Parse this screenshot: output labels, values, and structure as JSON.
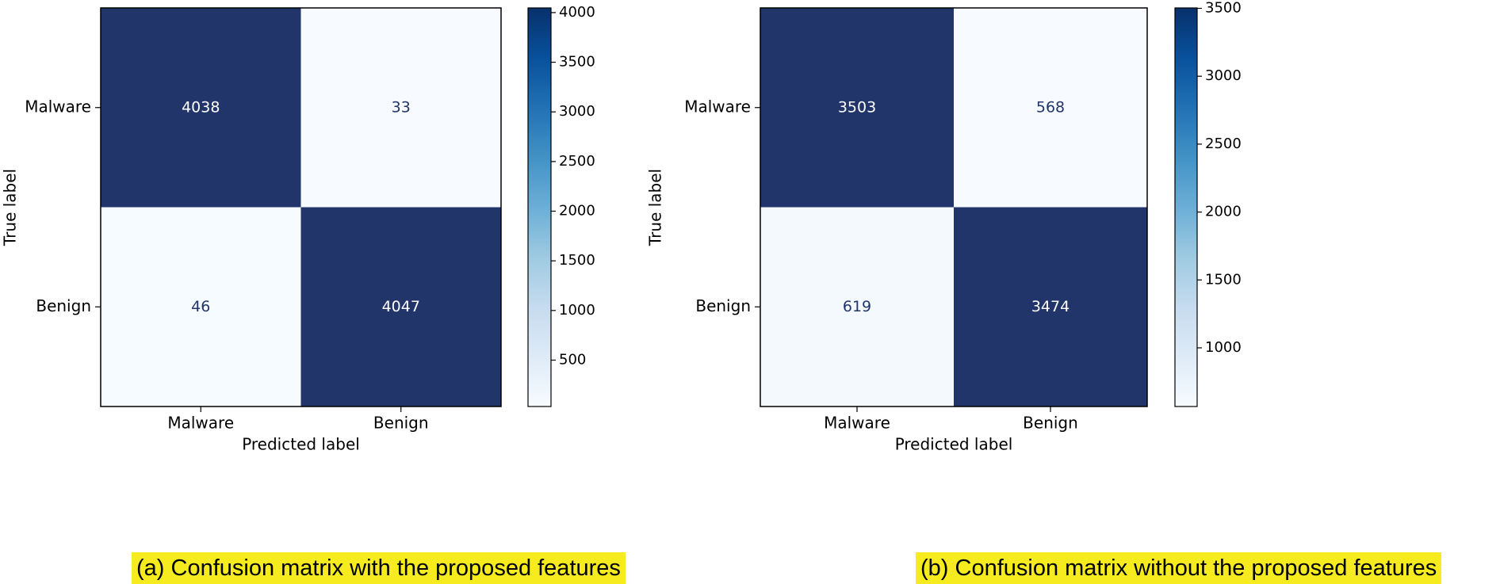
{
  "figure_captions": {
    "a": "(a) Confusion matrix with the proposed features",
    "b": "(b) Confusion matrix without the proposed features"
  },
  "chart_data": [
    {
      "type": "heatmap",
      "title": "",
      "xlabel": "Predicted label",
      "ylabel": "True label",
      "x_categories": [
        "Malware",
        "Benign"
      ],
      "y_categories": [
        "Malware",
        "Benign"
      ],
      "matrix": [
        [
          4038,
          33
        ],
        [
          46,
          4047
        ]
      ],
      "cell_labels": [
        [
          "4038",
          "33"
        ],
        [
          "46",
          "4047"
        ]
      ],
      "colorbar": {
        "range": [
          33,
          4047
        ],
        "ticks": [
          500,
          1000,
          1500,
          2000,
          2500,
          3000,
          3500,
          4000
        ],
        "tick_labels": [
          "500",
          "1000",
          "1500",
          "2000",
          "2500",
          "3000",
          "3500",
          "4000"
        ],
        "colormap": "Blues"
      },
      "grid": false
    },
    {
      "type": "heatmap",
      "title": "",
      "xlabel": "Predicted label",
      "ylabel": "True label",
      "x_categories": [
        "Malware",
        "Benign"
      ],
      "y_categories": [
        "Malware",
        "Benign"
      ],
      "matrix": [
        [
          3503,
          568
        ],
        [
          619,
          3474
        ]
      ],
      "cell_labels": [
        [
          "3503",
          "568"
        ],
        [
          "619",
          "3474"
        ]
      ],
      "colorbar": {
        "range": [
          568,
          3503
        ],
        "ticks": [
          1000,
          1500,
          2000,
          2500,
          3000,
          3500
        ],
        "tick_labels": [
          "1000",
          "1500",
          "2000",
          "2500",
          "3000",
          "3500"
        ],
        "colormap": "Blues"
      },
      "grid": false
    }
  ],
  "colors": {
    "cmap_stops": [
      "#f7fbff",
      "#deebf7",
      "#c6dbef",
      "#9ecae1",
      "#6baed6",
      "#4292c6",
      "#2171b5",
      "#08519c",
      "#08306b"
    ],
    "dark_cell": "#22356b",
    "light_text": "#ffffff",
    "dark_text": "#22356b",
    "caption_bg": "#f5eb1e"
  }
}
